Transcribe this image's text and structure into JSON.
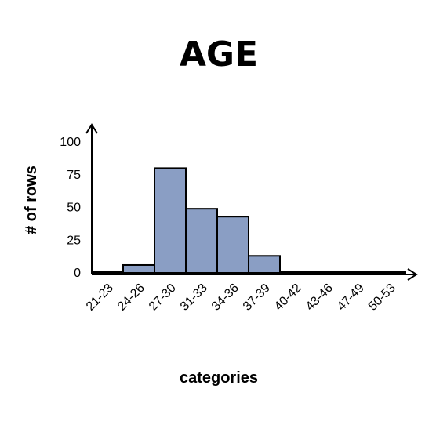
{
  "chart_data": {
    "type": "bar",
    "title": "AGE",
    "xlabel": "categories",
    "ylabel": "# of rows",
    "categories": [
      "21-23",
      "24-26",
      "27-30",
      "31-33",
      "34-36",
      "37-39",
      "40-42",
      "43-46",
      "47-49",
      "50-53"
    ],
    "values": [
      1,
      6,
      80,
      49,
      43,
      13,
      1,
      0,
      0,
      1
    ],
    "ylim": [
      0,
      100
    ],
    "yticks": [
      0,
      25,
      50,
      75,
      100
    ],
    "grid": false,
    "legend": "none",
    "bar_color": "#8a9ec4",
    "bar_edge_color": "#000000"
  }
}
